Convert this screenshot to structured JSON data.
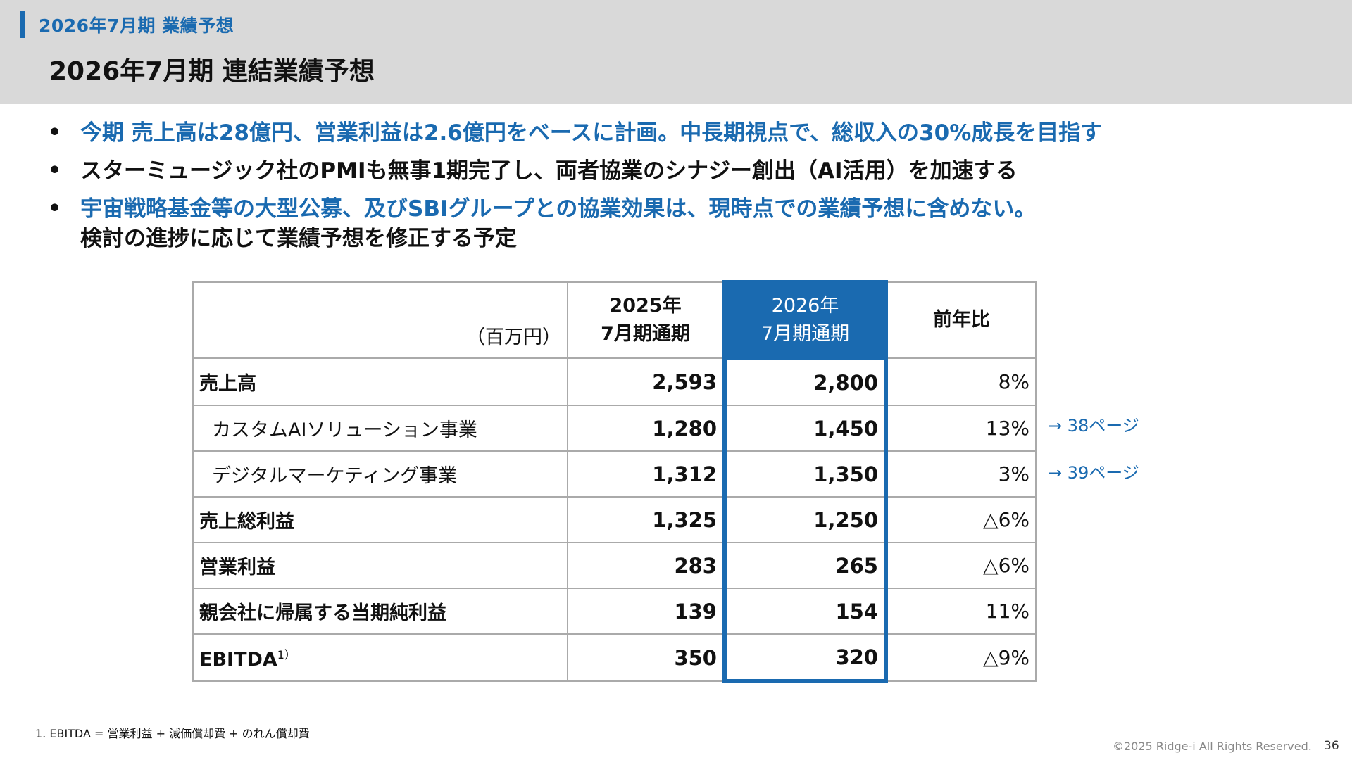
{
  "header": {
    "section_label": "2026年7月期  業績予想",
    "title": "2026年7月期 連結業績予想"
  },
  "bullets": [
    {
      "text": "今期  売上高は28億円、営業利益は2.6億円をベースに計画。中長期視点で、総収入の30%成長を目指す",
      "color": "#1a6ab0"
    },
    {
      "text": "スターミュージック社のPMIも無事1期完了し、両者協業のシナジー創出（AI活用）を加速する",
      "color": "#111111"
    },
    {
      "text": "宇宙戦略基金等の大型公募、及びSBIグループとの協業効果は、現時点での業績予想に含めない。",
      "line2": "検討の進捗に応じて業績予想を修正する予定",
      "color": "#1a6ab0"
    }
  ],
  "table": {
    "unit": "（百万円）",
    "col_fy2025_l1": "2025年",
    "col_fy2025_l2": "7月期通期",
    "col_fy2026_l1": "2026年",
    "col_fy2026_l2": "7月期通期",
    "col_yoy": "前年比",
    "rows": [
      {
        "label": "売上高",
        "fy2025": "2,593",
        "fy2026": "2,800",
        "yoy": "8%"
      },
      {
        "label": "カスタムAIソリューション事業",
        "fy2025": "1,280",
        "fy2026": "1,450",
        "yoy": "13%"
      },
      {
        "label": "デジタルマーケティング事業",
        "fy2025": "1,312",
        "fy2026": "1,350",
        "yoy": "3%"
      },
      {
        "label": "売上総利益",
        "fy2025": "1,325",
        "fy2026": "1,250",
        "yoy": "△6%"
      },
      {
        "label": "営業利益",
        "fy2025": "283",
        "fy2026": "265",
        "yoy": "△6%"
      },
      {
        "label": "親会社に帰属する当期純利益",
        "fy2025": "139",
        "fy2026": "154",
        "yoy": "11%"
      },
      {
        "label": "EBITDA",
        "label_sup": "1）",
        "fy2025": "350",
        "fy2026": "320",
        "yoy": "△9%"
      }
    ]
  },
  "page_refs": [
    "→ 38ページ",
    "→ 39ページ"
  ],
  "footnote": "1. EBITDA = 営業利益 + 減価償却費 + のれん償却費",
  "copyright": "©2025 Ridge-i All Rights Reserved.",
  "page_number": "36",
  "colors": {
    "accent": "#1a6ab0",
    "header_bg": "#d9d9d9"
  }
}
